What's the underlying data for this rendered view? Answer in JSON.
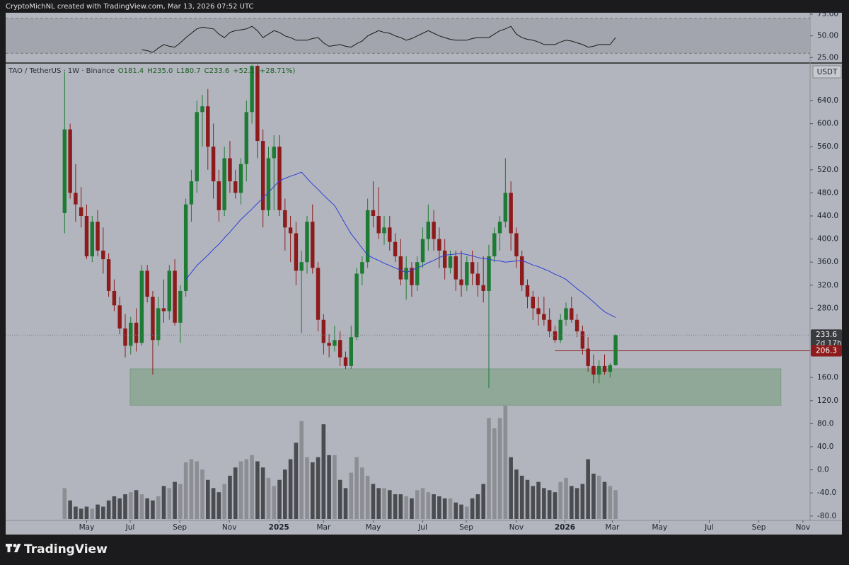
{
  "chart_data": {
    "type": "candlestick",
    "header": "CryptoMichNL created with TradingView.com, Mar 13, 2026 07:52 UTC",
    "brand": "TradingView",
    "legend": [
      "TAO / TetherUS · 1W · Binance",
      "O181.4",
      "H235.0",
      "L180.7",
      "C233.6",
      "+52.1 (+28.71%)"
    ],
    "currency": "USDT",
    "xlim": [
      -10.7,
      135.3
    ],
    "xticks": [
      {
        "value": 4.0,
        "label": "May"
      },
      {
        "value": 11.9,
        "label": "Jul"
      },
      {
        "value": 20.9,
        "label": "Sep"
      },
      {
        "value": 29.9,
        "label": "Nov"
      },
      {
        "value": 38.9,
        "label": "2025"
      },
      {
        "value": 47.0,
        "label": "Mar"
      },
      {
        "value": 56.0,
        "label": "May"
      },
      {
        "value": 65.0,
        "label": "Jul"
      },
      {
        "value": 72.9,
        "label": "Sep"
      },
      {
        "value": 82.0,
        "label": "Nov"
      },
      {
        "value": 90.8,
        "label": "2026"
      },
      {
        "value": 99.4,
        "label": "Mar"
      },
      {
        "value": 108.0,
        "label": "May"
      },
      {
        "value": 117.0,
        "label": "Jul"
      },
      {
        "value": 126.0,
        "label": "Sep"
      },
      {
        "value": 134.0,
        "label": "Nov"
      }
    ],
    "ylim": [
      -87.6,
      703.8
    ],
    "yticks": [
      {
        "value": 640,
        "label": "640.0"
      },
      {
        "value": 600,
        "label": "600.0"
      },
      {
        "value": 560,
        "label": "560.0"
      },
      {
        "value": 520,
        "label": "520.0"
      },
      {
        "value": 480,
        "label": "480.0"
      },
      {
        "value": 440,
        "label": "440.0"
      },
      {
        "value": 400,
        "label": "400.0"
      },
      {
        "value": 360,
        "label": "360.0"
      },
      {
        "value": 320,
        "label": "320.0"
      },
      {
        "value": 280,
        "label": "280.0"
      },
      {
        "value": 160,
        "label": "160.0"
      },
      {
        "value": 120,
        "label": "120.0"
      },
      {
        "value": 80,
        "label": "80.0"
      },
      {
        "value": 40,
        "label": "40.0"
      },
      {
        "value": 0,
        "label": "0.0"
      },
      {
        "value": -40,
        "label": "-40.0"
      },
      {
        "value": -80,
        "label": "-80.0"
      }
    ],
    "up_color": "#1e7b34",
    "down_color": "#8e1b1b",
    "open": [
      445,
      590,
      480,
      455,
      440,
      370,
      430,
      380,
      365,
      310,
      285,
      245,
      215,
      255,
      220,
      345,
      300,
      225,
      280,
      275,
      345,
      255,
      310,
      460,
      500,
      620,
      630,
      560,
      500,
      450,
      540,
      500,
      480,
      530,
      620,
      700,
      570,
      450,
      540,
      560,
      450,
      420,
      410,
      345,
      360,
      430,
      350,
      260,
      220,
      215,
      225,
      195,
      180,
      230,
      340,
      360,
      450,
      440,
      410,
      420,
      395,
      370,
      330,
      350,
      320,
      360,
      400,
      430,
      400,
      380,
      350,
      370,
      330,
      320,
      360,
      340,
      320,
      310,
      370,
      410,
      430,
      480,
      410,
      370,
      320,
      300,
      280,
      270,
      260,
      240,
      225,
      260,
      280,
      260,
      240,
      210,
      180,
      165,
      180,
      170,
      181.4
    ],
    "high": [
      690,
      600,
      530,
      490,
      460,
      440,
      450,
      420,
      375,
      330,
      300,
      270,
      265,
      280,
      355,
      355,
      310,
      300,
      330,
      355,
      365,
      320,
      470,
      520,
      640,
      650,
      660,
      600,
      520,
      560,
      570,
      520,
      540,
      640,
      702,
      702,
      590,
      560,
      580,
      580,
      470,
      440,
      430,
      380,
      440,
      460,
      360,
      270,
      235,
      250,
      240,
      205,
      250,
      350,
      370,
      470,
      500,
      490,
      440,
      440,
      410,
      400,
      370,
      360,
      370,
      420,
      460,
      450,
      420,
      400,
      380,
      380,
      380,
      370,
      380,
      360,
      370,
      390,
      420,
      440,
      540,
      500,
      420,
      380,
      330,
      310,
      300,
      300,
      280,
      250,
      270,
      290,
      300,
      270,
      250,
      230,
      200,
      190,
      200,
      185,
      235.0
    ],
    "low": [
      410,
      470,
      430,
      420,
      365,
      360,
      370,
      340,
      300,
      275,
      235,
      195,
      200,
      205,
      215,
      290,
      165,
      215,
      255,
      260,
      250,
      220,
      300,
      430,
      480,
      560,
      520,
      470,
      430,
      440,
      480,
      470,
      460,
      500,
      600,
      540,
      420,
      440,
      450,
      440,
      380,
      360,
      320,
      237,
      340,
      340,
      240,
      200,
      195,
      205,
      180,
      175,
      175,
      225,
      320,
      350,
      420,
      400,
      390,
      380,
      360,
      320,
      295,
      300,
      310,
      350,
      380,
      380,
      350,
      330,
      340,
      310,
      300,
      310,
      320,
      300,
      290,
      142,
      360,
      380,
      420,
      380,
      350,
      310,
      280,
      260,
      250,
      250,
      230,
      220,
      220,
      250,
      255,
      230,
      200,
      170,
      150,
      150,
      165,
      160,
      180.7
    ],
    "close": [
      590,
      480,
      460,
      440,
      370,
      430,
      380,
      365,
      310,
      285,
      245,
      215,
      255,
      220,
      345,
      300,
      225,
      280,
      275,
      345,
      255,
      310,
      460,
      500,
      620,
      630,
      560,
      500,
      450,
      540,
      500,
      480,
      530,
      620,
      700,
      570,
      450,
      540,
      560,
      450,
      420,
      410,
      345,
      360,
      430,
      350,
      260,
      220,
      215,
      225,
      195,
      180,
      230,
      340,
      360,
      450,
      440,
      410,
      420,
      395,
      370,
      330,
      350,
      320,
      360,
      400,
      430,
      400,
      380,
      350,
      370,
      330,
      320,
      360,
      340,
      320,
      310,
      370,
      410,
      430,
      480,
      410,
      370,
      320,
      300,
      280,
      270,
      260,
      240,
      225,
      260,
      280,
      260,
      240,
      210,
      180,
      165,
      180,
      170,
      181.4,
      233.6
    ],
    "ma": {
      "color": "#2e3fd6",
      "values": [
        null,
        null,
        null,
        null,
        null,
        null,
        null,
        null,
        null,
        null,
        null,
        null,
        null,
        null,
        null,
        null,
        null,
        null,
        null,
        null,
        null,
        null,
        330,
        342,
        354,
        363,
        372,
        382,
        391,
        402,
        412,
        423,
        434,
        443,
        452,
        462,
        471,
        481,
        491,
        501,
        505,
        509,
        512,
        516,
        505,
        495,
        486,
        476,
        467,
        458,
        442,
        425,
        409,
        397,
        384,
        372,
        367,
        363,
        358,
        354,
        350,
        346,
        342,
        346,
        350,
        354,
        359,
        363,
        368,
        372,
        373,
        374,
        375,
        373,
        371,
        368,
        366,
        365,
        363,
        362,
        360,
        361,
        362,
        363,
        359,
        355,
        352,
        348,
        344,
        339,
        335,
        330,
        322,
        314,
        307,
        299,
        291,
        282,
        274,
        269,
        264
      ]
    },
    "volume": {
      "ylim": [
        0,
        110
      ],
      "up_color": "#8d8e93",
      "down_color": "#4b4c50",
      "values": [
        30,
        18,
        12,
        10,
        12,
        10,
        14,
        12,
        18,
        22,
        20,
        24,
        26,
        28,
        24,
        20,
        18,
        22,
        32,
        30,
        36,
        34,
        55,
        58,
        56,
        48,
        38,
        30,
        26,
        34,
        42,
        50,
        56,
        58,
        62,
        56,
        50,
        40,
        32,
        38,
        48,
        58,
        74,
        95,
        60,
        55,
        60,
        92,
        62,
        62,
        38,
        30,
        45,
        60,
        50,
        42,
        34,
        30,
        30,
        28,
        24,
        24,
        22,
        20,
        28,
        30,
        26,
        24,
        22,
        20,
        20,
        16,
        14,
        12,
        20,
        24,
        34,
        98,
        88,
        98,
        110,
        60,
        48,
        42,
        38,
        32,
        36,
        30,
        28,
        26,
        36,
        40,
        32,
        30,
        34,
        58,
        44,
        42,
        36,
        32,
        28
      ]
    },
    "rsi": {
      "color": "#1a1a1a",
      "ylim": [
        19.6,
        76.6
      ],
      "band": [
        30,
        70
      ],
      "yticks": [
        {
          "value": 75,
          "label": "75.00"
        },
        {
          "value": 50,
          "label": "50.00"
        },
        {
          "value": 25,
          "label": "25.00"
        }
      ],
      "values": [
        null,
        null,
        null,
        null,
        null,
        null,
        null,
        null,
        null,
        null,
        null,
        null,
        null,
        null,
        34,
        33,
        31,
        36,
        40,
        38,
        37,
        42,
        48,
        53,
        58,
        60,
        59,
        58,
        52,
        48,
        54,
        56,
        57,
        58,
        61,
        56,
        48,
        52,
        56,
        54,
        50,
        48,
        45,
        45,
        45,
        47,
        48,
        42,
        38,
        39,
        40,
        38,
        37,
        41,
        44,
        50,
        53,
        56,
        54,
        53,
        50,
        48,
        45,
        47,
        50,
        53,
        56,
        53,
        50,
        48,
        46,
        45,
        45,
        45,
        47,
        48,
        48,
        48,
        52,
        56,
        58,
        61,
        52,
        48,
        46,
        45,
        43,
        40,
        40,
        40,
        43,
        45,
        44,
        42,
        40,
        37,
        38,
        40,
        40,
        40,
        48
      ]
    },
    "zone": {
      "x0": 11.9,
      "x1": 130.0,
      "y0": 112,
      "y1": 175,
      "color": "#8fa897"
    },
    "last_price": 233.6,
    "countdown": "2d 17h",
    "level": {
      "value": 206.3,
      "start": 89,
      "color": "#8e1b1b"
    }
  }
}
